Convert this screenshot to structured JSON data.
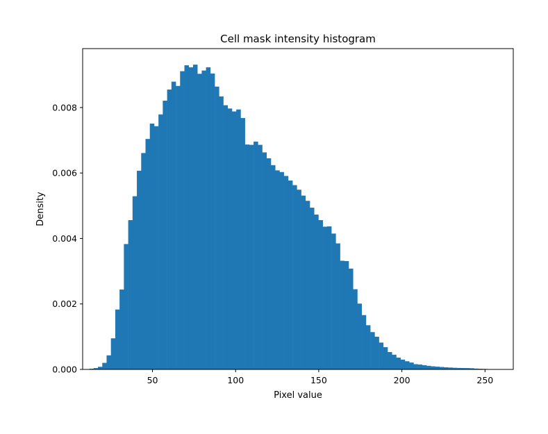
{
  "chart_data": {
    "type": "bar",
    "title": "Cell mask intensity histogram",
    "xlabel": "Pixel value",
    "ylabel": "Density",
    "xlim": [
      8.0,
      267.0
    ],
    "ylim": [
      0.0,
      0.0098
    ],
    "grid": false,
    "legend": "none",
    "bar_color": "#1f77b4",
    "bin_width": 2.6,
    "x_ticks": [
      50,
      100,
      150,
      200,
      250
    ],
    "x_tick_labels": [
      "50",
      "100",
      "150",
      "200",
      "250"
    ],
    "y_ticks": [
      0.0,
      0.002,
      0.004,
      0.006,
      0.008
    ],
    "y_tick_labels": [
      "0.000",
      "0.002",
      "0.004",
      "0.006",
      "0.008"
    ],
    "bin_starts": [
      12.0,
      14.6,
      17.2,
      19.8,
      22.4,
      25.0,
      27.6,
      30.2,
      32.8,
      35.4,
      38.0,
      40.6,
      43.2,
      45.8,
      48.4,
      51.0,
      53.6,
      56.2,
      58.8,
      61.4,
      64.0,
      66.6,
      69.2,
      71.8,
      74.4,
      77.0,
      79.6,
      82.2,
      84.8,
      87.4,
      90.0,
      92.6,
      95.2,
      97.8,
      100.4,
      103.0,
      105.6,
      108.2,
      110.8,
      113.4,
      116.0,
      118.6,
      121.2,
      123.8,
      126.4,
      129.0,
      131.6,
      134.2,
      136.8,
      139.4,
      142.0,
      144.6,
      147.2,
      149.8,
      152.4,
      155.0,
      157.6,
      160.2,
      162.8,
      165.4,
      168.0,
      170.6,
      173.2,
      175.8,
      178.4,
      181.0,
      183.6,
      186.2,
      188.8,
      191.4,
      194.0,
      196.6,
      199.2,
      201.8,
      204.4,
      207.0,
      209.6,
      212.2,
      214.8,
      217.4,
      220.0,
      222.6,
      225.2,
      227.8,
      230.4,
      233.0,
      235.6,
      238.2,
      240.8,
      243.4,
      246.0,
      248.6,
      251.2
    ],
    "values": [
      2e-05,
      4e-05,
      8e-05,
      0.0002,
      0.00043,
      0.00095,
      0.00183,
      0.00244,
      0.00383,
      0.00456,
      0.00529,
      0.00607,
      0.00661,
      0.00704,
      0.00751,
      0.00743,
      0.00779,
      0.00821,
      0.00855,
      0.00879,
      0.00866,
      0.00911,
      0.00929,
      0.00923,
      0.00931,
      0.00903,
      0.00913,
      0.00923,
      0.00904,
      0.00864,
      0.00834,
      0.00807,
      0.00797,
      0.00788,
      0.00794,
      0.00768,
      0.00687,
      0.00686,
      0.00696,
      0.00686,
      0.00663,
      0.00645,
      0.00624,
      0.00608,
      0.00603,
      0.00591,
      0.00577,
      0.00563,
      0.00549,
      0.00531,
      0.00515,
      0.00494,
      0.00473,
      0.00456,
      0.00436,
      0.00437,
      0.00415,
      0.00385,
      0.00332,
      0.00331,
      0.00308,
      0.00245,
      0.00201,
      0.00166,
      0.00135,
      0.00114,
      0.001,
      0.00082,
      0.00068,
      0.00053,
      0.00045,
      0.00036,
      0.0003,
      0.00025,
      0.00021,
      0.00016,
      0.00015,
      0.00013,
      0.00011,
      9.5e-05,
      8.5e-05,
      7.5e-05,
      6.5e-05,
      5.8e-05,
      5e-05,
      4.5e-05,
      4.2e-05,
      4e-05,
      3.5e-05,
      2.5e-05,
      2e-05,
      1.5e-05,
      1e-05
    ]
  }
}
